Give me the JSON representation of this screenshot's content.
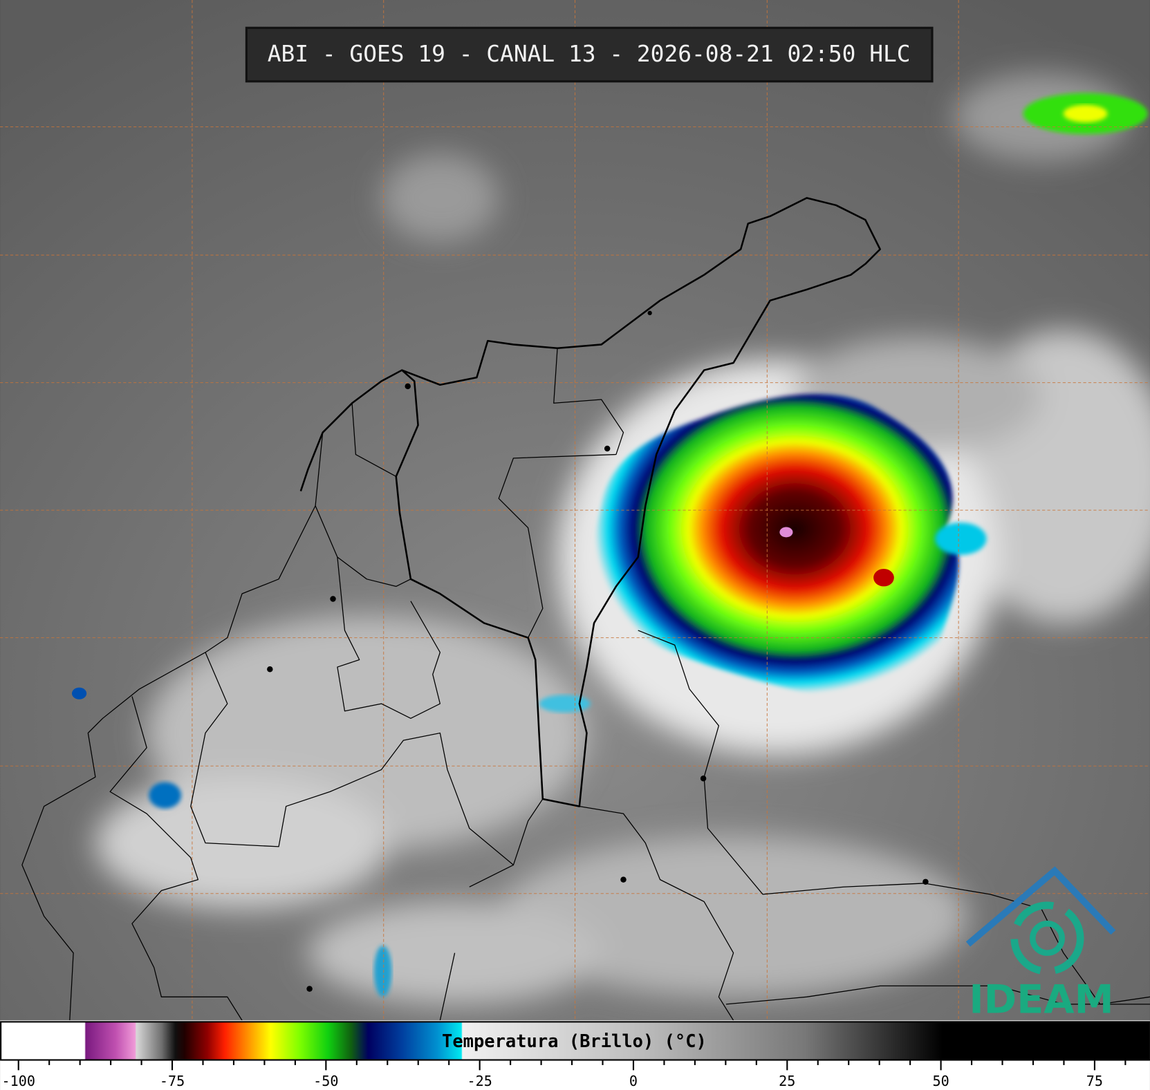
{
  "header": {
    "title": "ABI - GOES 19 - CANAL 13 - 2026-08-21 02:50 HLC"
  },
  "colorbar": {
    "label": "Temperatura (Brillo) (°C)",
    "lim": [
      -103,
      84
    ],
    "ticks": [
      -100,
      -75,
      -50,
      -25,
      0,
      25,
      50,
      75
    ],
    "minor_ticks": [
      -95,
      -90,
      -85,
      -80,
      -70,
      -65,
      -60,
      -55,
      -45,
      -40,
      -35,
      -30,
      -20,
      -15,
      -10,
      -5,
      5,
      10,
      15,
      20,
      30,
      35,
      40,
      45,
      55,
      60,
      65,
      70,
      80
    ]
  },
  "logo": {
    "text": "IDEAM"
  }
}
